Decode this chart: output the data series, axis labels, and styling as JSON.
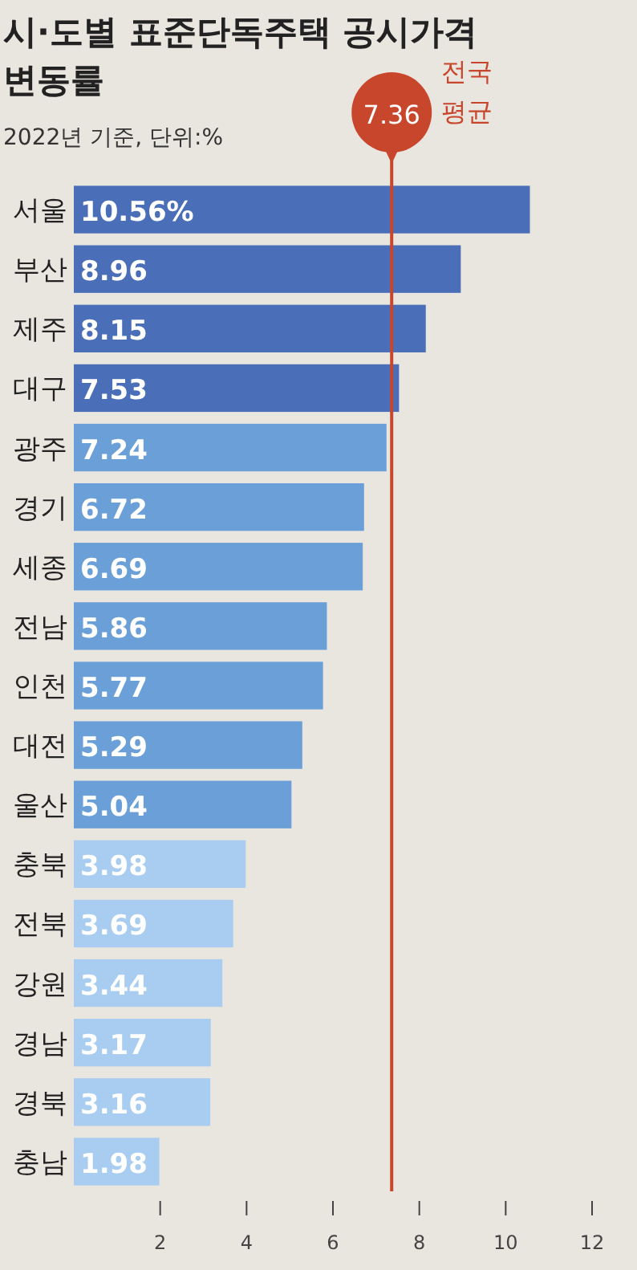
{
  "chart_data": {
    "type": "bar",
    "orientation": "horizontal",
    "title": "시·도별 표준단독주택 공시가격 변동률",
    "subtitle": "2022년 기준, 단위:%",
    "categories": [
      "서울",
      "부산",
      "제주",
      "대구",
      "광주",
      "경기",
      "세종",
      "전남",
      "인천",
      "대전",
      "울산",
      "충북",
      "전북",
      "강원",
      "경남",
      "경북",
      "충남"
    ],
    "values": [
      10.56,
      8.96,
      8.15,
      7.53,
      7.24,
      6.72,
      6.69,
      5.86,
      5.77,
      5.29,
      5.04,
      3.98,
      3.69,
      3.44,
      3.17,
      3.16,
      1.98
    ],
    "value_labels": [
      "10.56%",
      "8.96",
      "8.15",
      "7.53",
      "7.24",
      "6.72",
      "6.69",
      "5.86",
      "5.77",
      "5.29",
      "5.04",
      "3.98",
      "3.69",
      "3.44",
      "3.17",
      "3.16",
      "1.98"
    ],
    "colors": [
      "#4a6fb8",
      "#4a6fb8",
      "#4a6fb8",
      "#4a6fb8",
      "#6a9fd8",
      "#6a9fd8",
      "#6a9fd8",
      "#6a9fd8",
      "#6a9fd8",
      "#6a9fd8",
      "#6a9fd8",
      "#a8cdf0",
      "#a8cdf0",
      "#a8cdf0",
      "#a8cdf0",
      "#a8cdf0",
      "#a8cdf0"
    ],
    "xlim": [
      0,
      12
    ],
    "xticks": [
      2,
      4,
      6,
      8,
      10,
      12
    ],
    "grid": false,
    "annotations": [
      "7.36"
    ],
    "ref_lines": [
      {
        "axis": "x",
        "value": 7.36,
        "label": "전국 평균",
        "color": "#c8462c"
      }
    ]
  }
}
